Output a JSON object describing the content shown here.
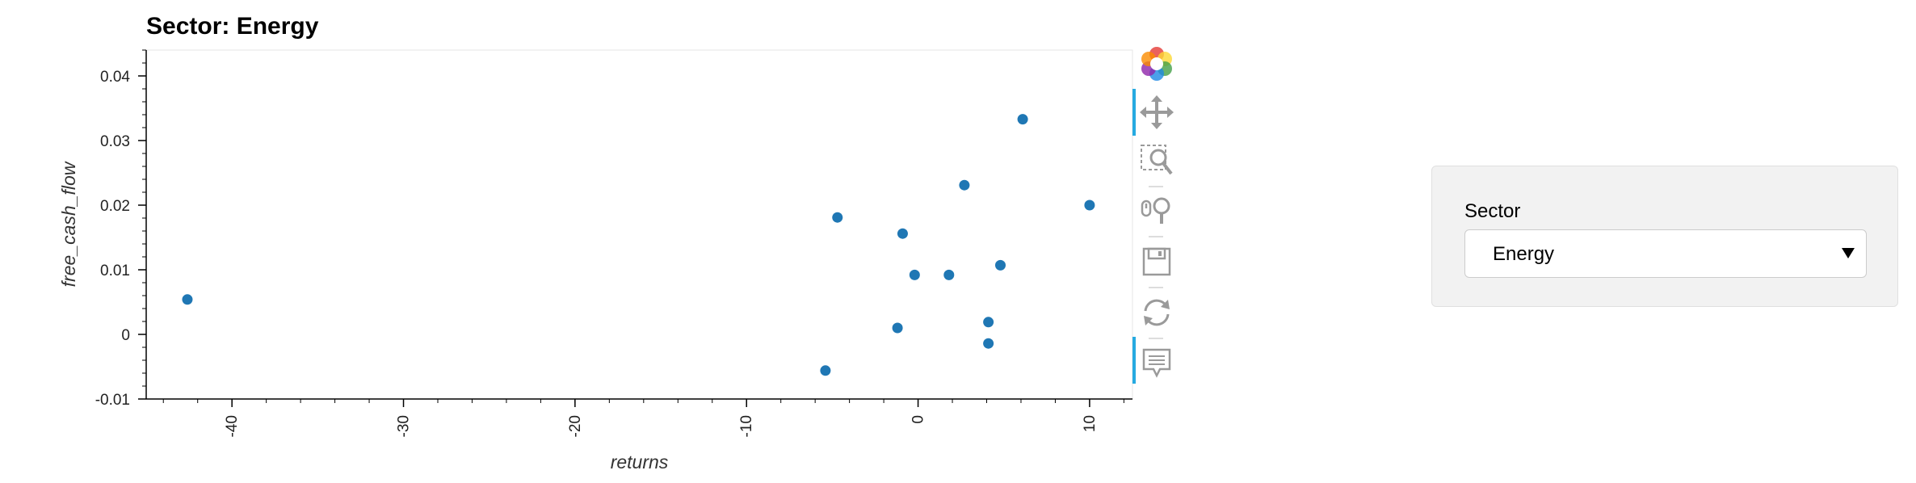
{
  "chart_data": {
    "type": "scatter",
    "title": "Sector: Energy",
    "xlabel": "returns",
    "ylabel": "free_cash_flow",
    "xlim": [
      -45,
      12.5
    ],
    "ylim": [
      -0.01,
      0.044
    ],
    "x_ticks": [
      -40,
      -30,
      -20,
      -10,
      0,
      10
    ],
    "x_tick_labels": [
      "-40",
      "-30",
      "-20",
      "-10",
      "0",
      "10"
    ],
    "y_ticks": [
      -0.01,
      0,
      0.01,
      0.02,
      0.03,
      0.04
    ],
    "y_tick_labels": [
      "-0.01",
      "0",
      "0.01",
      "0.02",
      "0.03",
      "0.04"
    ],
    "point_color": "#1f77b4",
    "points": [
      {
        "x": -42.6,
        "y": 0.0054
      },
      {
        "x": -5.4,
        "y": -0.0056
      },
      {
        "x": -4.7,
        "y": 0.0181
      },
      {
        "x": -1.2,
        "y": 0.001
      },
      {
        "x": -0.9,
        "y": 0.0156
      },
      {
        "x": -0.2,
        "y": 0.0092
      },
      {
        "x": 1.8,
        "y": 0.0092
      },
      {
        "x": 2.7,
        "y": 0.0231
      },
      {
        "x": 4.1,
        "y": 0.0019
      },
      {
        "x": 4.1,
        "y": -0.0014
      },
      {
        "x": 4.8,
        "y": 0.0107
      },
      {
        "x": 6.1,
        "y": 0.0333
      },
      {
        "x": 10.0,
        "y": 0.02
      }
    ]
  },
  "toolbar": {
    "tools": [
      {
        "name": "bokeh-logo",
        "icon": "bokeh-logo-icon",
        "active": false
      },
      {
        "name": "pan",
        "icon": "pan-icon",
        "active": true
      },
      {
        "name": "box-zoom",
        "icon": "box-zoom-icon",
        "active": false
      },
      {
        "name": "wheel-zoom",
        "icon": "wheel-zoom-icon",
        "active": false
      },
      {
        "name": "save",
        "icon": "save-icon",
        "active": false
      },
      {
        "name": "reset",
        "icon": "reset-icon",
        "active": false
      },
      {
        "name": "hover",
        "icon": "hover-icon",
        "active": true
      }
    ],
    "active_color": "#26aae1"
  },
  "widget": {
    "label": "Sector",
    "selected": "Energy"
  }
}
